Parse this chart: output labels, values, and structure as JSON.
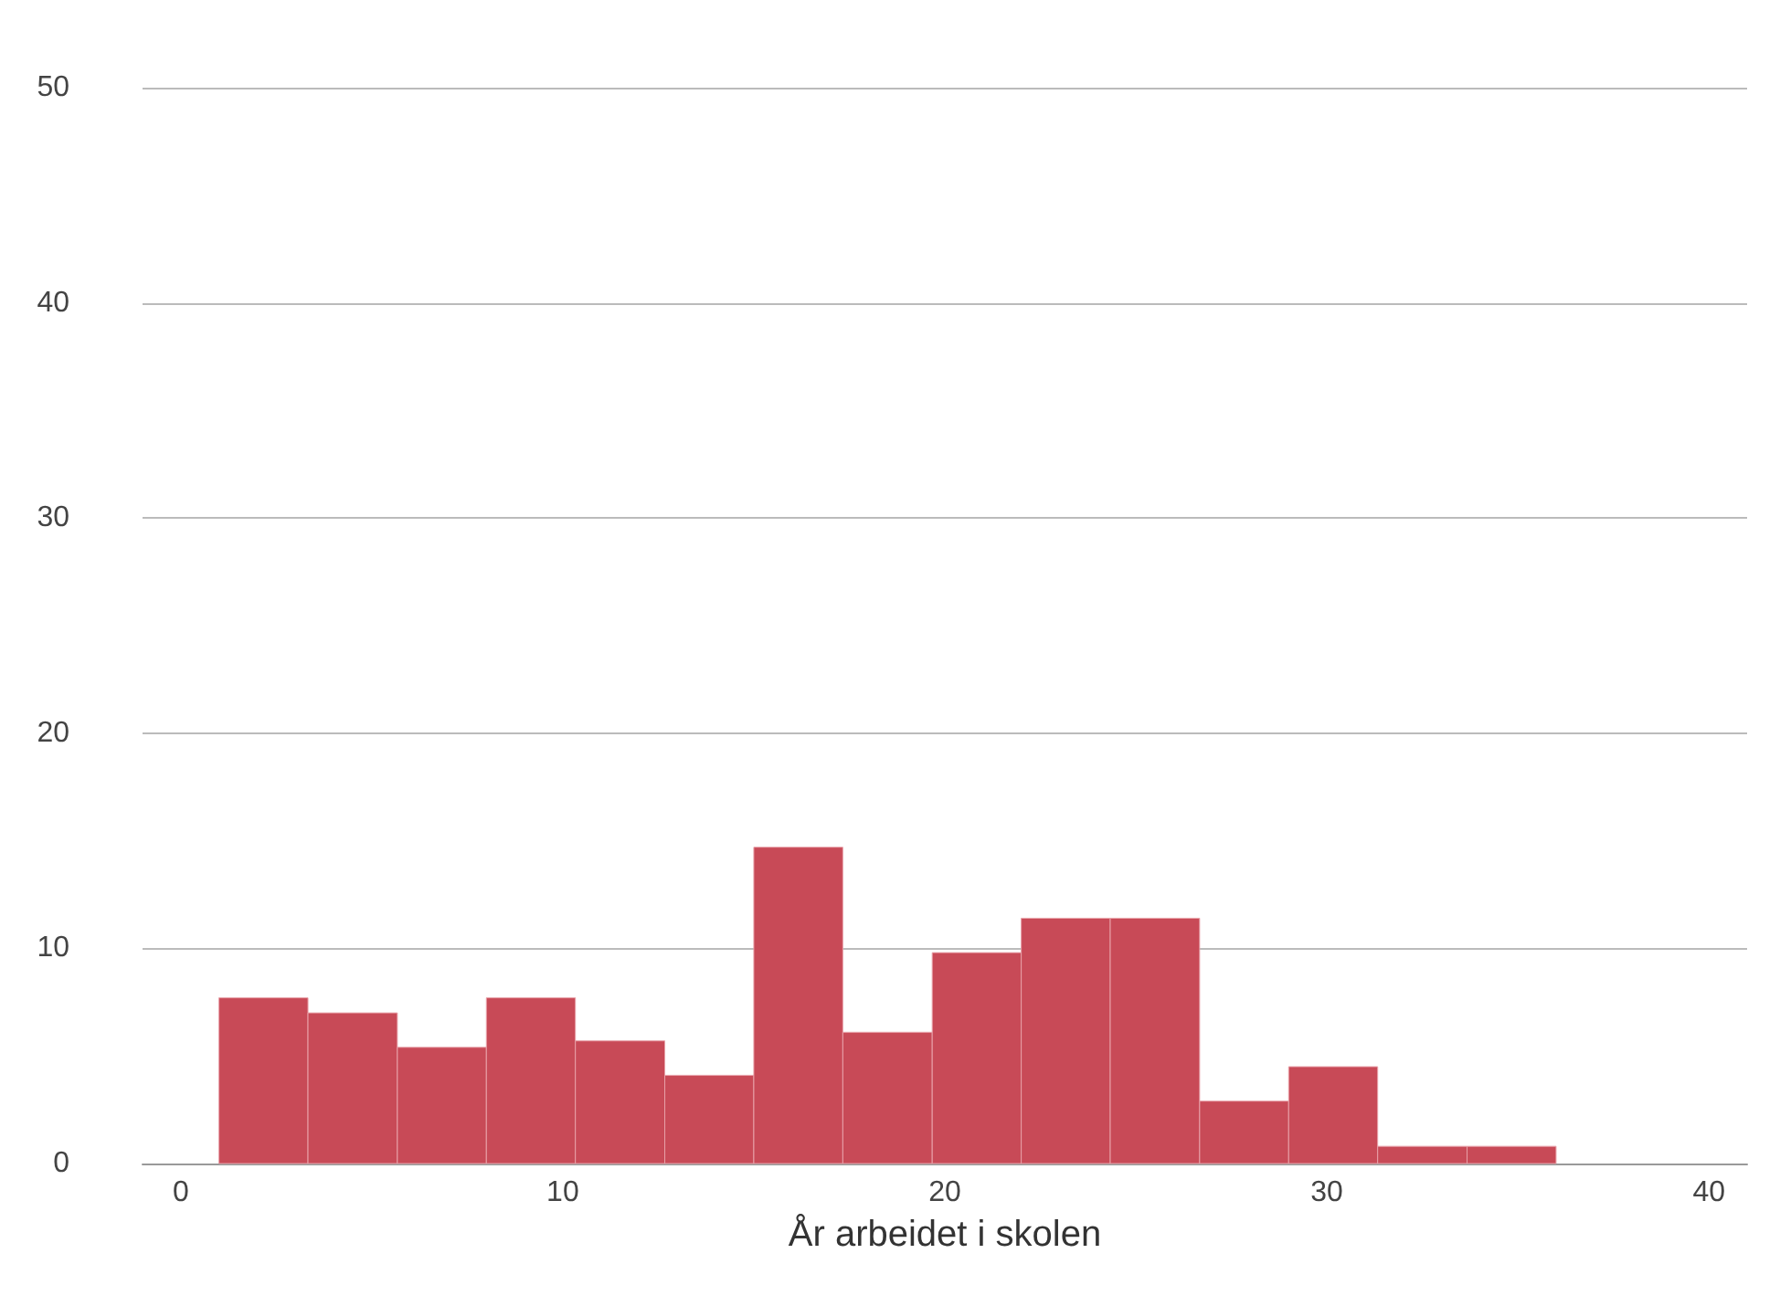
{
  "chart_data": {
    "type": "histogram",
    "xlabel": "År arbeidet i skolen",
    "bins": [
      1,
      3.33,
      5.67,
      8,
      10.33,
      12.67,
      15,
      17.33,
      19.67,
      22,
      24.33,
      26.67,
      29,
      31.33,
      33.67,
      36
    ],
    "values": [
      7.7,
      7.0,
      5.4,
      7.7,
      5.7,
      4.1,
      14.7,
      6.1,
      9.8,
      11.4,
      11.4,
      2.9,
      4.5,
      0.8,
      0.8
    ],
    "color": "#c84a57",
    "xlim": [
      -1,
      41
    ],
    "xticks": [
      0,
      10,
      20,
      30,
      40
    ],
    "ylim": [
      0,
      50
    ],
    "yticks": [
      0,
      10,
      20,
      30,
      40,
      50
    ],
    "grid": "y"
  }
}
